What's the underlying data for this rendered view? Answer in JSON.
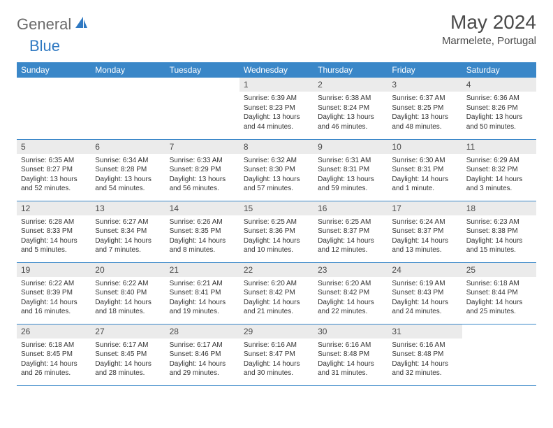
{
  "logo": {
    "text1": "General",
    "text2": "Blue"
  },
  "title": {
    "month": "May 2024",
    "location": "Marmelete, Portugal"
  },
  "colors": {
    "header_bg": "#3a87c8",
    "header_fg": "#ffffff",
    "daynum_bg": "#ebebeb",
    "rule": "#3a87c8",
    "logo_gray": "#6a6a6a",
    "logo_blue": "#2f79c2",
    "text": "#333333"
  },
  "day_labels": [
    "Sunday",
    "Monday",
    "Tuesday",
    "Wednesday",
    "Thursday",
    "Friday",
    "Saturday"
  ],
  "weeks": [
    [
      {
        "n": "",
        "sr": "",
        "ss": "",
        "dl": ""
      },
      {
        "n": "",
        "sr": "",
        "ss": "",
        "dl": ""
      },
      {
        "n": "",
        "sr": "",
        "ss": "",
        "dl": ""
      },
      {
        "n": "1",
        "sr": "Sunrise: 6:39 AM",
        "ss": "Sunset: 8:23 PM",
        "dl": "Daylight: 13 hours and 44 minutes."
      },
      {
        "n": "2",
        "sr": "Sunrise: 6:38 AM",
        "ss": "Sunset: 8:24 PM",
        "dl": "Daylight: 13 hours and 46 minutes."
      },
      {
        "n": "3",
        "sr": "Sunrise: 6:37 AM",
        "ss": "Sunset: 8:25 PM",
        "dl": "Daylight: 13 hours and 48 minutes."
      },
      {
        "n": "4",
        "sr": "Sunrise: 6:36 AM",
        "ss": "Sunset: 8:26 PM",
        "dl": "Daylight: 13 hours and 50 minutes."
      }
    ],
    [
      {
        "n": "5",
        "sr": "Sunrise: 6:35 AM",
        "ss": "Sunset: 8:27 PM",
        "dl": "Daylight: 13 hours and 52 minutes."
      },
      {
        "n": "6",
        "sr": "Sunrise: 6:34 AM",
        "ss": "Sunset: 8:28 PM",
        "dl": "Daylight: 13 hours and 54 minutes."
      },
      {
        "n": "7",
        "sr": "Sunrise: 6:33 AM",
        "ss": "Sunset: 8:29 PM",
        "dl": "Daylight: 13 hours and 56 minutes."
      },
      {
        "n": "8",
        "sr": "Sunrise: 6:32 AM",
        "ss": "Sunset: 8:30 PM",
        "dl": "Daylight: 13 hours and 57 minutes."
      },
      {
        "n": "9",
        "sr": "Sunrise: 6:31 AM",
        "ss": "Sunset: 8:31 PM",
        "dl": "Daylight: 13 hours and 59 minutes."
      },
      {
        "n": "10",
        "sr": "Sunrise: 6:30 AM",
        "ss": "Sunset: 8:31 PM",
        "dl": "Daylight: 14 hours and 1 minute."
      },
      {
        "n": "11",
        "sr": "Sunrise: 6:29 AM",
        "ss": "Sunset: 8:32 PM",
        "dl": "Daylight: 14 hours and 3 minutes."
      }
    ],
    [
      {
        "n": "12",
        "sr": "Sunrise: 6:28 AM",
        "ss": "Sunset: 8:33 PM",
        "dl": "Daylight: 14 hours and 5 minutes."
      },
      {
        "n": "13",
        "sr": "Sunrise: 6:27 AM",
        "ss": "Sunset: 8:34 PM",
        "dl": "Daylight: 14 hours and 7 minutes."
      },
      {
        "n": "14",
        "sr": "Sunrise: 6:26 AM",
        "ss": "Sunset: 8:35 PM",
        "dl": "Daylight: 14 hours and 8 minutes."
      },
      {
        "n": "15",
        "sr": "Sunrise: 6:25 AM",
        "ss": "Sunset: 8:36 PM",
        "dl": "Daylight: 14 hours and 10 minutes."
      },
      {
        "n": "16",
        "sr": "Sunrise: 6:25 AM",
        "ss": "Sunset: 8:37 PM",
        "dl": "Daylight: 14 hours and 12 minutes."
      },
      {
        "n": "17",
        "sr": "Sunrise: 6:24 AM",
        "ss": "Sunset: 8:37 PM",
        "dl": "Daylight: 14 hours and 13 minutes."
      },
      {
        "n": "18",
        "sr": "Sunrise: 6:23 AM",
        "ss": "Sunset: 8:38 PM",
        "dl": "Daylight: 14 hours and 15 minutes."
      }
    ],
    [
      {
        "n": "19",
        "sr": "Sunrise: 6:22 AM",
        "ss": "Sunset: 8:39 PM",
        "dl": "Daylight: 14 hours and 16 minutes."
      },
      {
        "n": "20",
        "sr": "Sunrise: 6:22 AM",
        "ss": "Sunset: 8:40 PM",
        "dl": "Daylight: 14 hours and 18 minutes."
      },
      {
        "n": "21",
        "sr": "Sunrise: 6:21 AM",
        "ss": "Sunset: 8:41 PM",
        "dl": "Daylight: 14 hours and 19 minutes."
      },
      {
        "n": "22",
        "sr": "Sunrise: 6:20 AM",
        "ss": "Sunset: 8:42 PM",
        "dl": "Daylight: 14 hours and 21 minutes."
      },
      {
        "n": "23",
        "sr": "Sunrise: 6:20 AM",
        "ss": "Sunset: 8:42 PM",
        "dl": "Daylight: 14 hours and 22 minutes."
      },
      {
        "n": "24",
        "sr": "Sunrise: 6:19 AM",
        "ss": "Sunset: 8:43 PM",
        "dl": "Daylight: 14 hours and 24 minutes."
      },
      {
        "n": "25",
        "sr": "Sunrise: 6:18 AM",
        "ss": "Sunset: 8:44 PM",
        "dl": "Daylight: 14 hours and 25 minutes."
      }
    ],
    [
      {
        "n": "26",
        "sr": "Sunrise: 6:18 AM",
        "ss": "Sunset: 8:45 PM",
        "dl": "Daylight: 14 hours and 26 minutes."
      },
      {
        "n": "27",
        "sr": "Sunrise: 6:17 AM",
        "ss": "Sunset: 8:45 PM",
        "dl": "Daylight: 14 hours and 28 minutes."
      },
      {
        "n": "28",
        "sr": "Sunrise: 6:17 AM",
        "ss": "Sunset: 8:46 PM",
        "dl": "Daylight: 14 hours and 29 minutes."
      },
      {
        "n": "29",
        "sr": "Sunrise: 6:16 AM",
        "ss": "Sunset: 8:47 PM",
        "dl": "Daylight: 14 hours and 30 minutes."
      },
      {
        "n": "30",
        "sr": "Sunrise: 6:16 AM",
        "ss": "Sunset: 8:48 PM",
        "dl": "Daylight: 14 hours and 31 minutes."
      },
      {
        "n": "31",
        "sr": "Sunrise: 6:16 AM",
        "ss": "Sunset: 8:48 PM",
        "dl": "Daylight: 14 hours and 32 minutes."
      },
      {
        "n": "",
        "sr": "",
        "ss": "",
        "dl": ""
      }
    ]
  ]
}
